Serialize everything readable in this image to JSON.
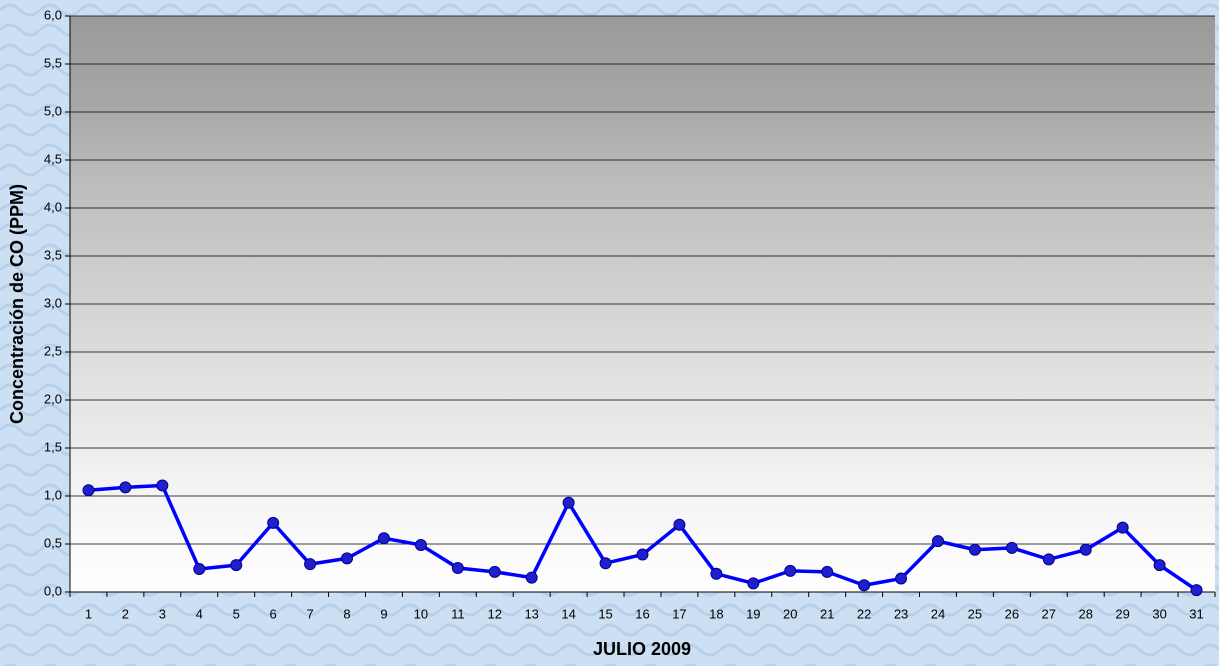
{
  "chart_data": {
    "type": "line",
    "y_label": "Concentración de CO (PPM)",
    "x_label": "JULIO 2009",
    "categories": [
      "1",
      "2",
      "3",
      "4",
      "5",
      "6",
      "7",
      "8",
      "9",
      "10",
      "11",
      "12",
      "13",
      "14",
      "15",
      "16",
      "17",
      "18",
      "19",
      "20",
      "21",
      "22",
      "23",
      "24",
      "25",
      "26",
      "27",
      "28",
      "29",
      "30",
      "31"
    ],
    "values": [
      1.06,
      1.09,
      1.11,
      0.24,
      0.28,
      0.72,
      0.29,
      0.35,
      0.56,
      0.49,
      0.25,
      0.21,
      0.15,
      0.93,
      0.3,
      0.39,
      0.7,
      0.19,
      0.09,
      0.22,
      0.21,
      0.07,
      0.14,
      0.53,
      0.44,
      0.46,
      0.34,
      0.44,
      0.67,
      0.28,
      0.02
    ],
    "color": "#0000ff",
    "ylim": [
      0,
      6
    ],
    "yticks": [
      {
        "value": 0,
        "label": "0,0"
      },
      {
        "value": 0.5,
        "label": "0,5"
      },
      {
        "value": 1,
        "label": "1,0"
      },
      {
        "value": 1.5,
        "label": "1,5"
      },
      {
        "value": 2,
        "label": "2,0"
      },
      {
        "value": 2.5,
        "label": "2,5"
      },
      {
        "value": 3,
        "label": "3,0"
      },
      {
        "value": 3.5,
        "label": "3,5"
      },
      {
        "value": 4,
        "label": "4,0"
      },
      {
        "value": 4.5,
        "label": "4,5"
      },
      {
        "value": 5,
        "label": "5,0"
      },
      {
        "value": 5.5,
        "label": "5,5"
      },
      {
        "value": 6,
        "label": "6,0"
      }
    ],
    "grid": true
  }
}
